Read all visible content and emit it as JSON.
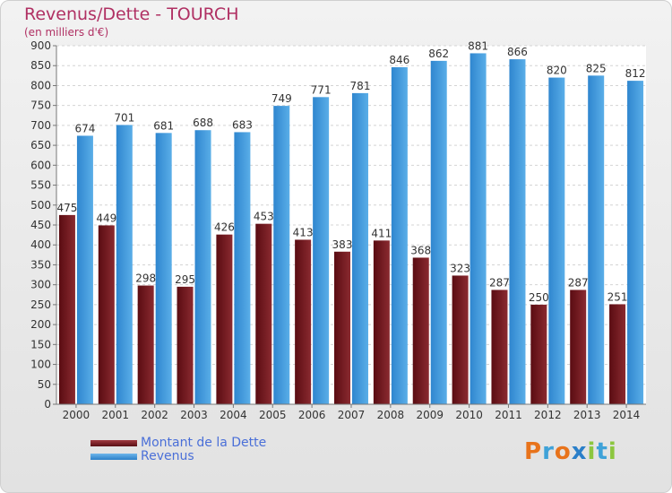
{
  "header": {
    "title": "Revenus/Dette - TOURCH",
    "subtitle": "(en milliers d'€)"
  },
  "chart_data": {
    "type": "bar",
    "categories": [
      "2000",
      "2001",
      "2002",
      "2003",
      "2004",
      "2005",
      "2006",
      "2007",
      "2008",
      "2009",
      "2010",
      "2011",
      "2012",
      "2013",
      "2014"
    ],
    "series": [
      {
        "name": "Montant de la Dette",
        "color": "#7a1e24",
        "values": [
          475,
          449,
          298,
          295,
          426,
          453,
          413,
          383,
          411,
          368,
          323,
          287,
          250,
          287,
          251
        ]
      },
      {
        "name": "Revenus",
        "color": "#3f97dc",
        "values": [
          674,
          701,
          681,
          688,
          683,
          749,
          771,
          781,
          846,
          862,
          881,
          866,
          820,
          825,
          812
        ]
      }
    ],
    "yticks": [
      0,
      50,
      100,
      150,
      200,
      250,
      300,
      350,
      400,
      450,
      500,
      550,
      600,
      650,
      700,
      750,
      800,
      850,
      900
    ],
    "ylim": [
      0,
      900
    ],
    "grid": true,
    "legend": "bottom-left"
  },
  "legend": {
    "items": [
      {
        "label": "Montant de la Dette",
        "color": "#7a1e24"
      },
      {
        "label": "Revenus",
        "color": "#3f97dc"
      }
    ]
  },
  "logo": {
    "letters": [
      "P",
      "r",
      "o",
      "x",
      "i",
      "t",
      "i"
    ],
    "colors": [
      "#e8731b",
      "#3fa2d8",
      "#e8731b",
      "#2a7fc9",
      "#8cc63f",
      "#3fa2d8",
      "#8cc63f"
    ]
  }
}
